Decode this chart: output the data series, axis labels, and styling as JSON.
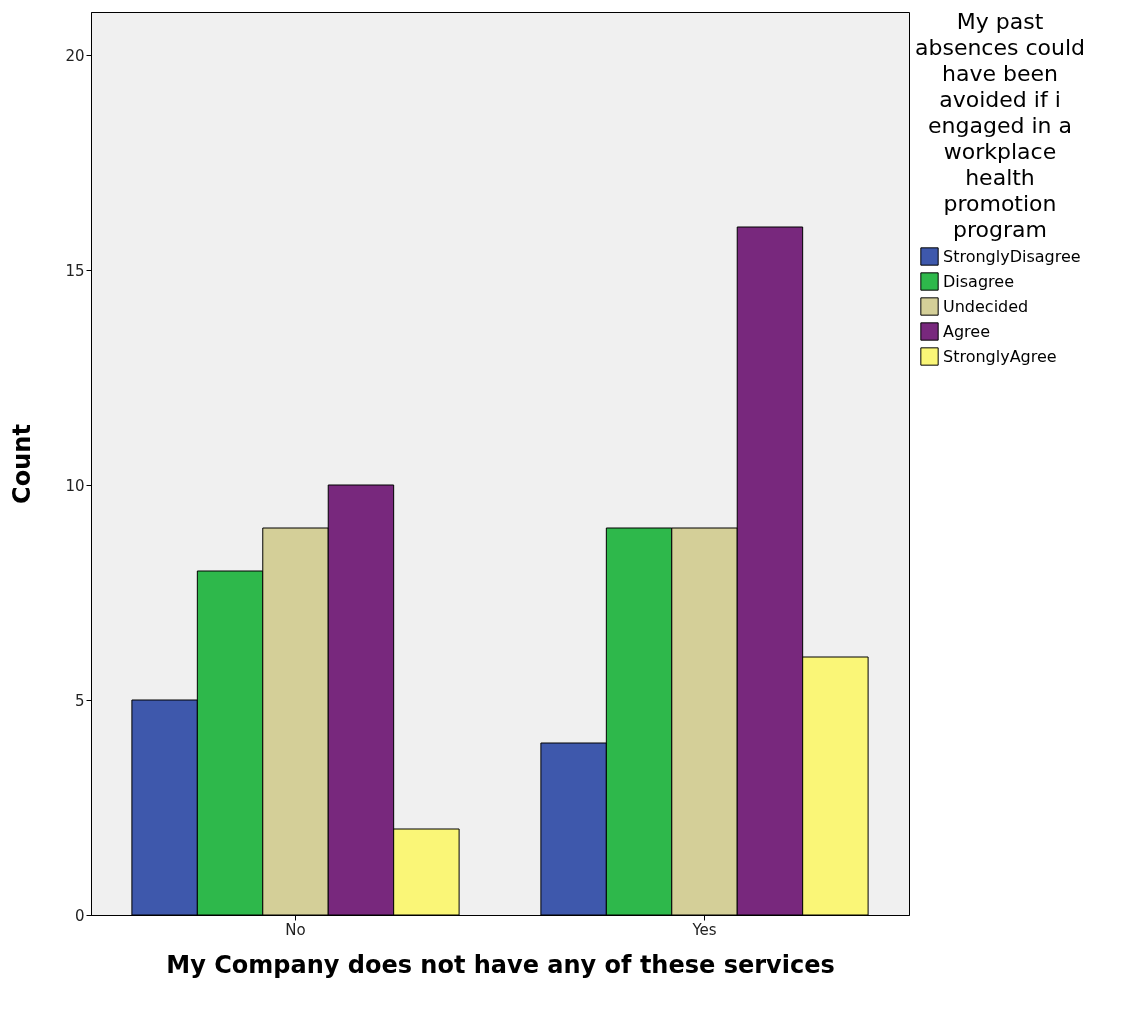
{
  "chart_data": {
    "type": "bar",
    "xlabel": "My Company does not have any of these services",
    "ylabel": "Count",
    "legend_title": "My past absences could have been avoided if i engaged in a workplace health promotion program",
    "categories": [
      "No",
      "Yes"
    ],
    "series": [
      {
        "name": "StronglyDisagree",
        "color": "#3e58ac",
        "values": [
          5,
          4
        ]
      },
      {
        "name": "Disagree",
        "color": "#2eb84b",
        "values": [
          8,
          9
        ]
      },
      {
        "name": "Undecided",
        "color": "#d4cf98",
        "values": [
          9,
          9
        ]
      },
      {
        "name": "Agree",
        "color": "#78287d",
        "values": [
          10,
          16
        ]
      },
      {
        "name": "StronglyAgree",
        "color": "#faf677",
        "values": [
          2,
          6
        ]
      }
    ],
    "ylim": [
      0,
      21
    ],
    "yticks": [
      0,
      5,
      10,
      15,
      20
    ],
    "grid": false,
    "legend": "top right"
  }
}
